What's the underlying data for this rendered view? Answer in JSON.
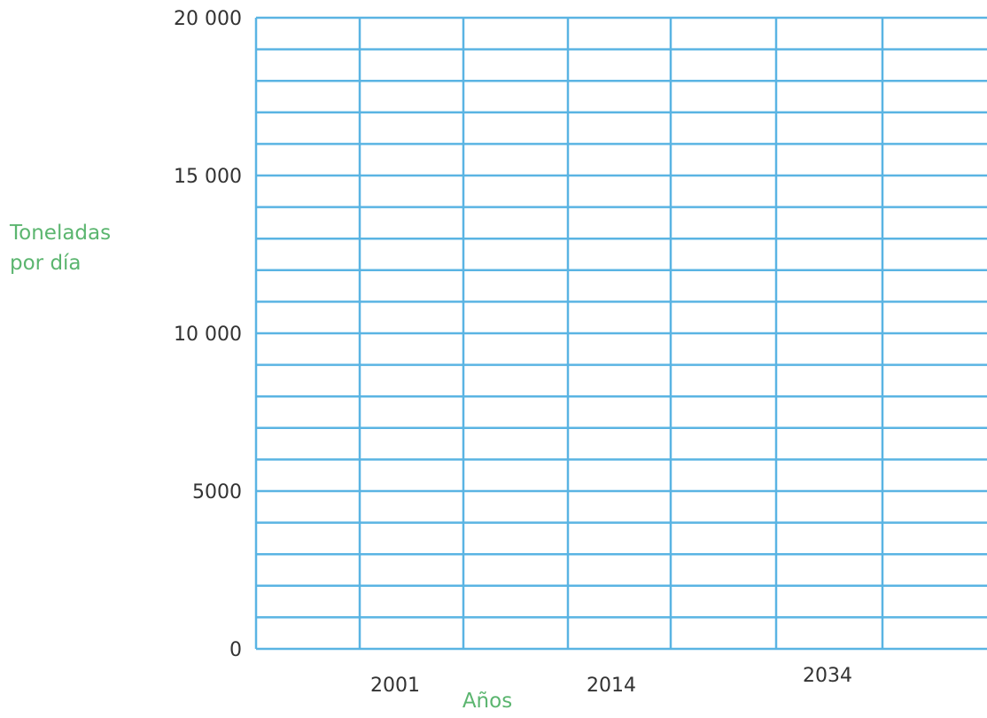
{
  "chart_data": {
    "type": "line",
    "title": "",
    "xlabel": "Años",
    "ylabel_lines": [
      "Toneladas",
      "por día"
    ],
    "ylim": [
      0,
      20000
    ],
    "y_ticks": [
      {
        "value": 0,
        "label": "0"
      },
      {
        "value": 5000,
        "label": "5000"
      },
      {
        "value": 10000,
        "label": "10 000"
      },
      {
        "value": 15000,
        "label": "15 000"
      },
      {
        "value": 20000,
        "label": "20 000"
      }
    ],
    "x_ticks": [
      "2001",
      "2014",
      "2034"
    ],
    "grid": true,
    "series": []
  },
  "colors": {
    "grid": "#5ab4e3",
    "tick_text": "#333333",
    "axis_title": "#5bb56f"
  }
}
